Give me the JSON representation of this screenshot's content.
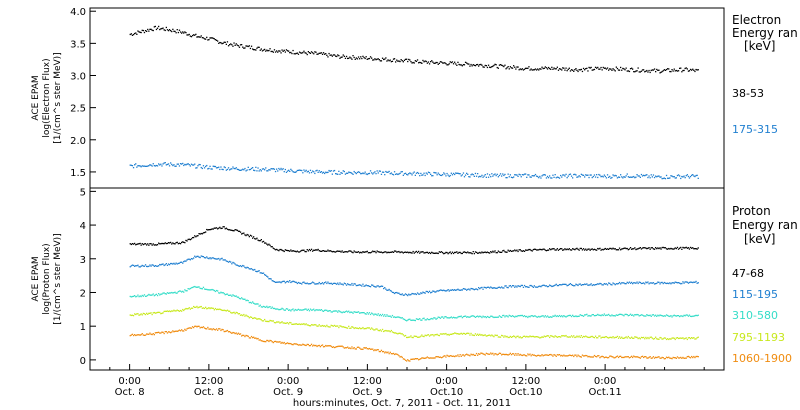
{
  "chart_data": [
    {
      "type": "scatter",
      "panel": "electron",
      "ylabel": [
        "ACE EPAM",
        "log(Electron Flux)",
        "[1/(cm^s ster MeV)]"
      ],
      "ylim": [
        1.25,
        4.05
      ],
      "yticks": [
        1.5,
        2.0,
        2.5,
        3.0,
        3.5,
        4.0
      ],
      "ytick_labels": [
        "1.5",
        "2.0",
        "2.5",
        "3.0",
        "3.5",
        "4.0"
      ],
      "legend_title": [
        "Electron",
        "Energy ran",
        "[keV]"
      ],
      "series": [
        {
          "name": "38-53",
          "color": "#000000",
          "x_hours": [
            0,
            2,
            4,
            6,
            8,
            10,
            12,
            14,
            16,
            18,
            20,
            22,
            24,
            28,
            32,
            36,
            40,
            44,
            48,
            52,
            56,
            60,
            64,
            68,
            72,
            76,
            80,
            84,
            86
          ],
          "y": [
            3.65,
            3.7,
            3.75,
            3.72,
            3.68,
            3.62,
            3.58,
            3.52,
            3.48,
            3.45,
            3.42,
            3.4,
            3.38,
            3.35,
            3.3,
            3.28,
            3.25,
            3.22,
            3.2,
            3.18,
            3.15,
            3.12,
            3.12,
            3.1,
            3.12,
            3.1,
            3.08,
            3.1,
            3.08
          ]
        },
        {
          "name": "175-315",
          "color": "#1f7fd0",
          "x_hours": [
            0,
            4,
            8,
            12,
            16,
            20,
            24,
            28,
            32,
            36,
            40,
            44,
            48,
            52,
            56,
            60,
            64,
            68,
            72,
            76,
            80,
            84,
            86
          ],
          "y": [
            1.6,
            1.63,
            1.62,
            1.58,
            1.56,
            1.55,
            1.53,
            1.51,
            1.5,
            1.5,
            1.49,
            1.48,
            1.47,
            1.46,
            1.45,
            1.45,
            1.44,
            1.45,
            1.44,
            1.45,
            1.43,
            1.44,
            1.44
          ]
        }
      ]
    },
    {
      "type": "scatter",
      "panel": "proton",
      "ylabel": [
        "ACE EPAM",
        "log(Proton Flux)",
        "[1/(cm^s ster MeV)]"
      ],
      "ylim": [
        -0.3,
        5.1
      ],
      "yticks": [
        0,
        1,
        2,
        3,
        4,
        5
      ],
      "ytick_labels": [
        "0",
        "1",
        "2",
        "3",
        "4",
        "5"
      ],
      "legend_title": [
        "Proton",
        "Energy ran",
        "[keV]"
      ],
      "series": [
        {
          "name": "47-68",
          "color": "#000000",
          "x_hours": [
            0,
            4,
            8,
            10,
            12,
            14,
            16,
            18,
            20,
            22,
            24,
            26,
            28,
            30,
            34,
            40,
            46,
            52,
            58,
            64,
            70,
            76,
            82,
            86
          ],
          "y": [
            3.45,
            3.45,
            3.5,
            3.7,
            3.9,
            3.95,
            3.85,
            3.7,
            3.55,
            3.3,
            3.25,
            3.25,
            3.28,
            3.25,
            3.22,
            3.22,
            3.2,
            3.2,
            3.25,
            3.3,
            3.3,
            3.32,
            3.33,
            3.33
          ]
        },
        {
          "name": "115-195",
          "color": "#1f7fd0",
          "x_hours": [
            0,
            4,
            8,
            10,
            12,
            14,
            16,
            18,
            20,
            22,
            24,
            26,
            30,
            34,
            38,
            40,
            42,
            46,
            50,
            54,
            58,
            62,
            66,
            70,
            76,
            82,
            86
          ],
          "y": [
            2.8,
            2.82,
            2.9,
            3.1,
            3.05,
            3.0,
            2.85,
            2.75,
            2.6,
            2.3,
            2.35,
            2.3,
            2.3,
            2.25,
            2.2,
            2.0,
            1.95,
            2.05,
            2.1,
            2.15,
            2.2,
            2.2,
            2.25,
            2.25,
            2.3,
            2.3,
            2.32
          ]
        },
        {
          "name": "310-580",
          "color": "#35ddc8",
          "x_hours": [
            0,
            4,
            8,
            10,
            12,
            14,
            16,
            18,
            20,
            22,
            24,
            28,
            32,
            36,
            40,
            42,
            46,
            50,
            54,
            58,
            62,
            66,
            70,
            76,
            82,
            86
          ],
          "y": [
            1.9,
            1.95,
            2.05,
            2.2,
            2.1,
            2.0,
            1.9,
            1.75,
            1.6,
            1.55,
            1.5,
            1.5,
            1.45,
            1.4,
            1.3,
            1.2,
            1.25,
            1.3,
            1.3,
            1.32,
            1.3,
            1.32,
            1.35,
            1.35,
            1.32,
            1.33
          ]
        },
        {
          "name": "795-1193",
          "color": "#c8e81e",
          "x_hours": [
            0,
            4,
            8,
            10,
            12,
            14,
            16,
            18,
            20,
            22,
            24,
            28,
            32,
            36,
            40,
            42,
            46,
            50,
            54,
            58,
            62,
            66,
            70,
            76,
            82,
            86
          ],
          "y": [
            1.35,
            1.4,
            1.5,
            1.6,
            1.55,
            1.5,
            1.4,
            1.3,
            1.2,
            1.15,
            1.1,
            1.05,
            1.0,
            0.95,
            0.85,
            0.7,
            0.75,
            0.8,
            0.75,
            0.7,
            0.7,
            0.72,
            0.7,
            0.68,
            0.65,
            0.66
          ]
        },
        {
          "name": "1060-1900",
          "color": "#f08c10",
          "x_hours": [
            0,
            4,
            8,
            10,
            12,
            14,
            16,
            18,
            20,
            22,
            24,
            28,
            32,
            36,
            40,
            42,
            46,
            50,
            54,
            58,
            62,
            66,
            70,
            76,
            82,
            86
          ],
          "y": [
            0.75,
            0.8,
            0.9,
            1.0,
            0.95,
            0.9,
            0.8,
            0.7,
            0.6,
            0.55,
            0.5,
            0.45,
            0.4,
            0.35,
            0.2,
            0.0,
            0.1,
            0.15,
            0.2,
            0.18,
            0.15,
            0.15,
            0.12,
            0.1,
            0.08,
            0.1
          ]
        }
      ]
    }
  ],
  "x_axis": {
    "xlim_hours": [
      -6,
      90
    ],
    "ticks": [
      {
        "hours": 0,
        "time": "0:00",
        "date": "Oct. 8"
      },
      {
        "hours": 12,
        "time": "12:00",
        "date": "Oct. 8"
      },
      {
        "hours": 24,
        "time": "0:00",
        "date": "Oct. 9"
      },
      {
        "hours": 36,
        "time": "12:00",
        "date": "Oct. 9"
      },
      {
        "hours": 48,
        "time": "0:00",
        "date": "Oct.10"
      },
      {
        "hours": 60,
        "time": "12:00",
        "date": "Oct.10"
      },
      {
        "hours": 72,
        "time": "0:00",
        "date": "Oct.11"
      }
    ],
    "title": "hours:minutes, Oct.  7, 2011 - Oct. 11, 2011"
  }
}
